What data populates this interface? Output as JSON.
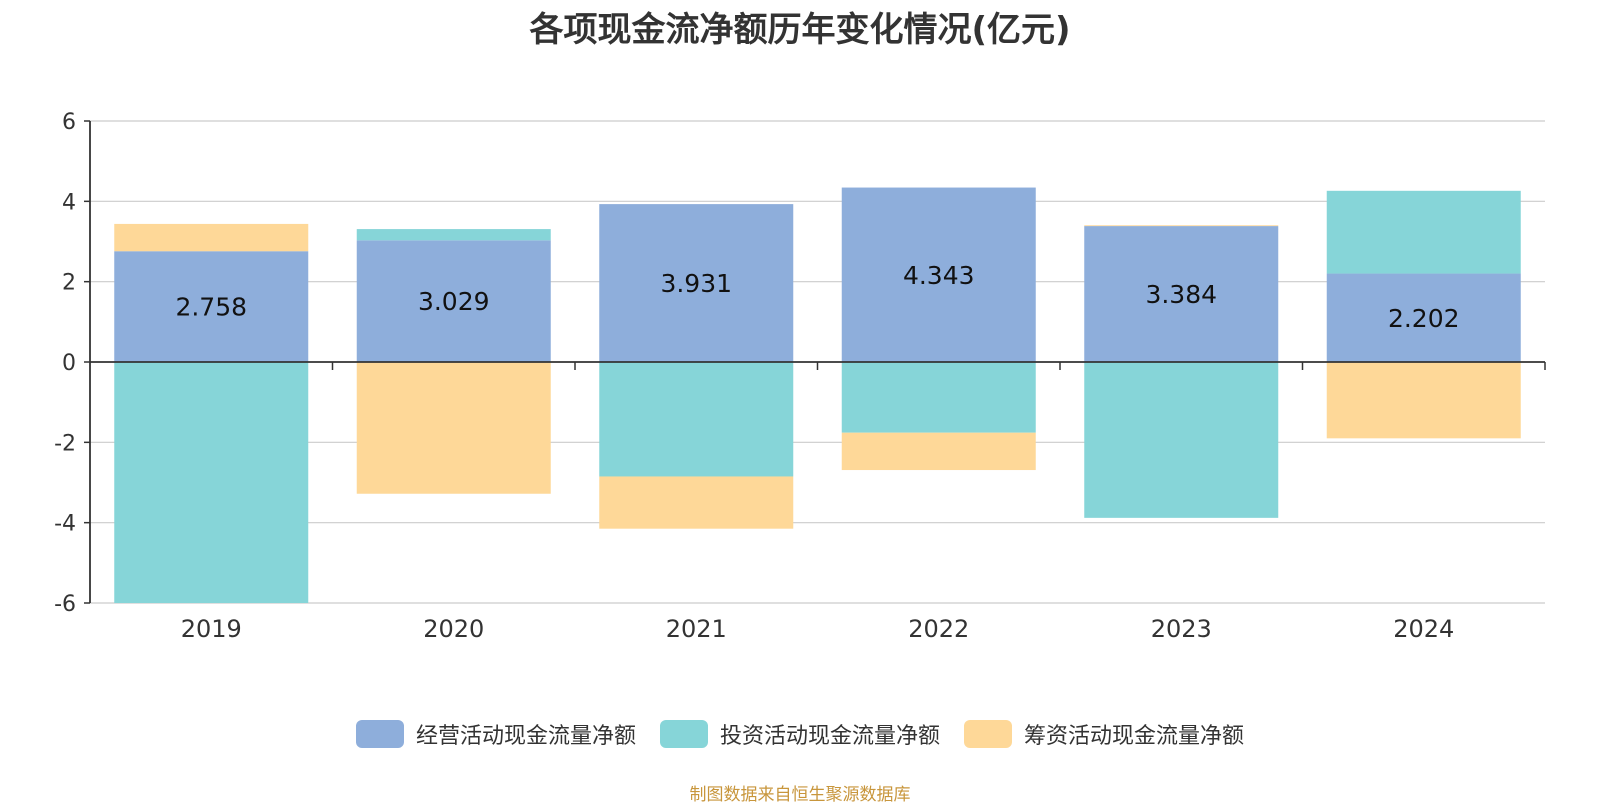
{
  "chart_data": {
    "type": "bar",
    "stacked": true,
    "title": "各项现金流净额历年变化情况(亿元)",
    "categories": [
      "2019",
      "2020",
      "2021",
      "2022",
      "2023",
      "2024"
    ],
    "series": [
      {
        "name": "经营活动现金流量净额",
        "color": "#8eaedb",
        "values": [
          2.758,
          3.029,
          3.931,
          4.343,
          3.384,
          2.202
        ],
        "show_labels": true
      },
      {
        "name": "投资活动现金流量净额",
        "color": "#86d5d8",
        "values": [
          -6.0,
          0.28,
          -2.85,
          -1.76,
          -3.88,
          2.06
        ],
        "show_labels": false
      },
      {
        "name": "筹资活动现金流量净额",
        "color": "#fed898",
        "values": [
          0.68,
          -3.28,
          -1.3,
          -0.93,
          0.02,
          -1.9
        ],
        "show_labels": false
      }
    ],
    "ylim": [
      -6,
      6
    ],
    "yticks": [
      -6,
      -4,
      -2,
      0,
      2,
      4,
      6
    ],
    "xlabel": "",
    "ylabel": "",
    "grid": true,
    "legend_position": "bottom"
  },
  "source_note": "制图数据来自恒生聚源数据库"
}
